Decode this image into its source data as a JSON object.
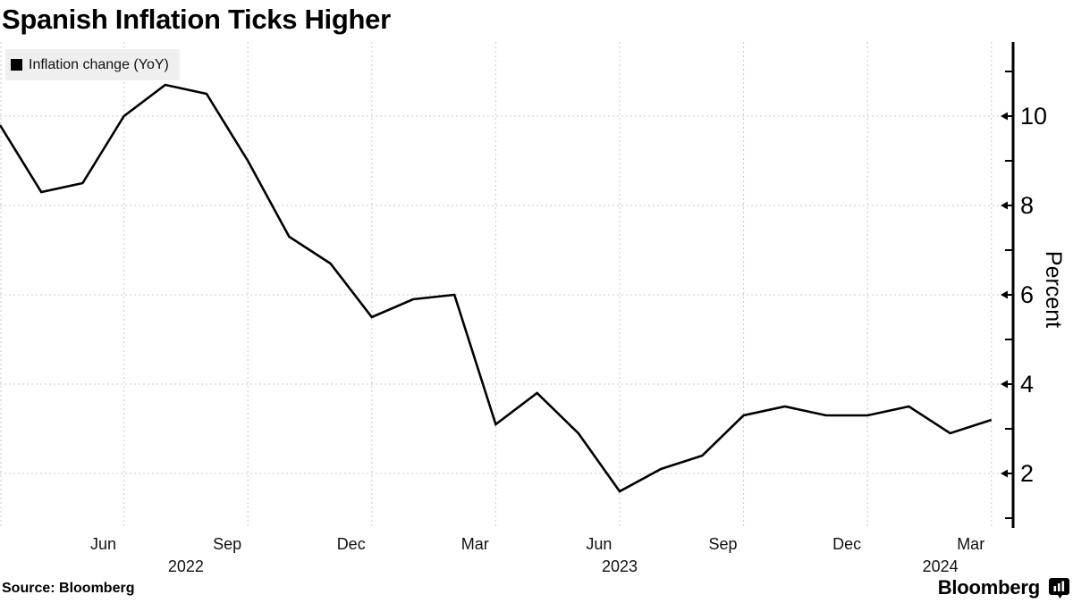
{
  "title": "Spanish Inflation Ticks Higher",
  "legend": {
    "label": "Inflation change (YoY)",
    "swatch_color": "#000000"
  },
  "source_note": "Source: Bloomberg",
  "brand": {
    "wordmark": "Bloomberg",
    "icon": "bloomberg-terminal-icon"
  },
  "colors": {
    "background": "#ffffff",
    "line": "#000000",
    "grid": "#c9c9c9",
    "legend_bg": "#efefef",
    "text": "#000000"
  },
  "chart_data": {
    "type": "line",
    "title": "Spanish Inflation Ticks Higher",
    "ylabel": "Percent",
    "xlabel": "",
    "grid": true,
    "legend_position": "top-left",
    "legend_entries": [
      "Inflation change (YoY)"
    ],
    "x": [
      "Mar 2022",
      "Apr 2022",
      "May 2022",
      "Jun 2022",
      "Jul 2022",
      "Aug 2022",
      "Sep 2022",
      "Oct 2022",
      "Nov 2022",
      "Dec 2022",
      "Jan 2023",
      "Feb 2023",
      "Mar 2023",
      "Apr 2023",
      "May 2023",
      "Jun 2023",
      "Jul 2023",
      "Aug 2023",
      "Sep 2023",
      "Oct 2023",
      "Nov 2023",
      "Dec 2023",
      "Jan 2024",
      "Feb 2024",
      "Mar 2024"
    ],
    "series": [
      {
        "name": "Inflation change (YoY)",
        "color": "#000000",
        "values": [
          9.8,
          8.3,
          8.5,
          10.0,
          10.7,
          10.5,
          9.0,
          7.3,
          6.7,
          5.5,
          5.9,
          6.0,
          3.1,
          3.8,
          2.9,
          1.6,
          2.1,
          2.4,
          3.3,
          3.5,
          3.3,
          3.3,
          3.5,
          2.9,
          3.2
        ]
      }
    ],
    "x_tick_labels": [
      "Jun",
      "Sep",
      "Dec",
      "Mar",
      "Jun",
      "Sep",
      "Dec",
      "Mar"
    ],
    "year_labels": [
      "2022",
      "2023",
      "2024"
    ],
    "y_major_ticks": [
      2,
      4,
      6,
      8,
      10
    ],
    "y_minor_ticks": [
      1,
      3,
      5,
      7,
      9,
      11
    ],
    "ylim": [
      0.8,
      11.7
    ]
  }
}
